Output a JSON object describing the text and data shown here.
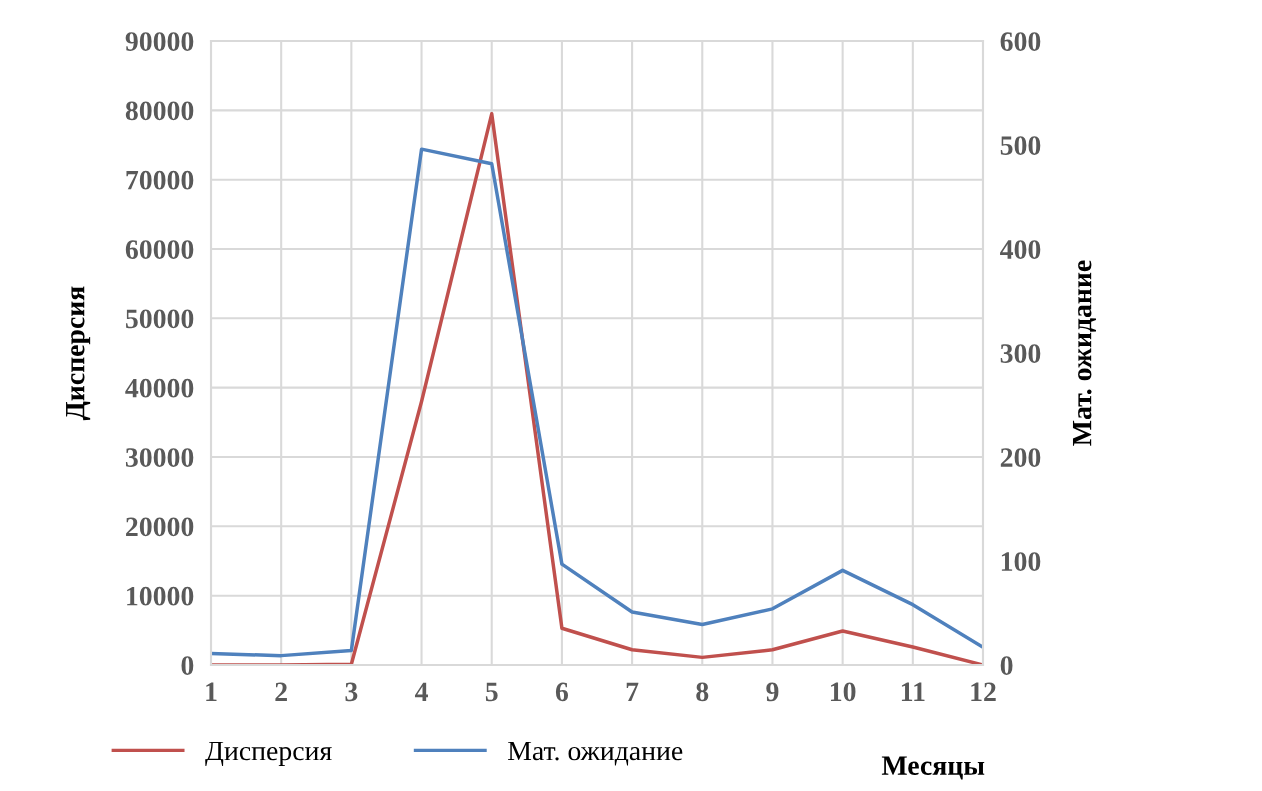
{
  "chart_data": {
    "type": "line",
    "xlabel": "Месяцы",
    "ylabel": "Дисперсия",
    "y2label": "Мат. ожидание",
    "categories": [
      "1",
      "2",
      "3",
      "4",
      "5",
      "6",
      "7",
      "8",
      "9",
      "10",
      "11",
      "12"
    ],
    "series": [
      {
        "name": "Дисперсия",
        "color": "#c0504d",
        "values": [
          0,
          0,
          100,
          38000,
          79500,
          5300,
          2200,
          1100,
          2200,
          4900,
          2600,
          0
        ]
      },
      {
        "name": "Мат. ожидание",
        "color": "#4f81bd",
        "axis": "y2",
        "values": [
          11,
          9,
          14,
          496,
          482,
          97,
          51,
          39,
          54,
          91,
          58,
          17
        ]
      }
    ],
    "ylim": [
      0,
      90000
    ],
    "yticks": [
      0,
      10000,
      20000,
      30000,
      40000,
      50000,
      60000,
      70000,
      80000,
      90000
    ],
    "y2lim": [
      0,
      600
    ],
    "y2ticks": [
      0,
      100,
      200,
      300,
      400,
      500,
      600
    ],
    "grid": true,
    "legend": "bottom left",
    "marker": "none",
    "line_style": "solid"
  }
}
